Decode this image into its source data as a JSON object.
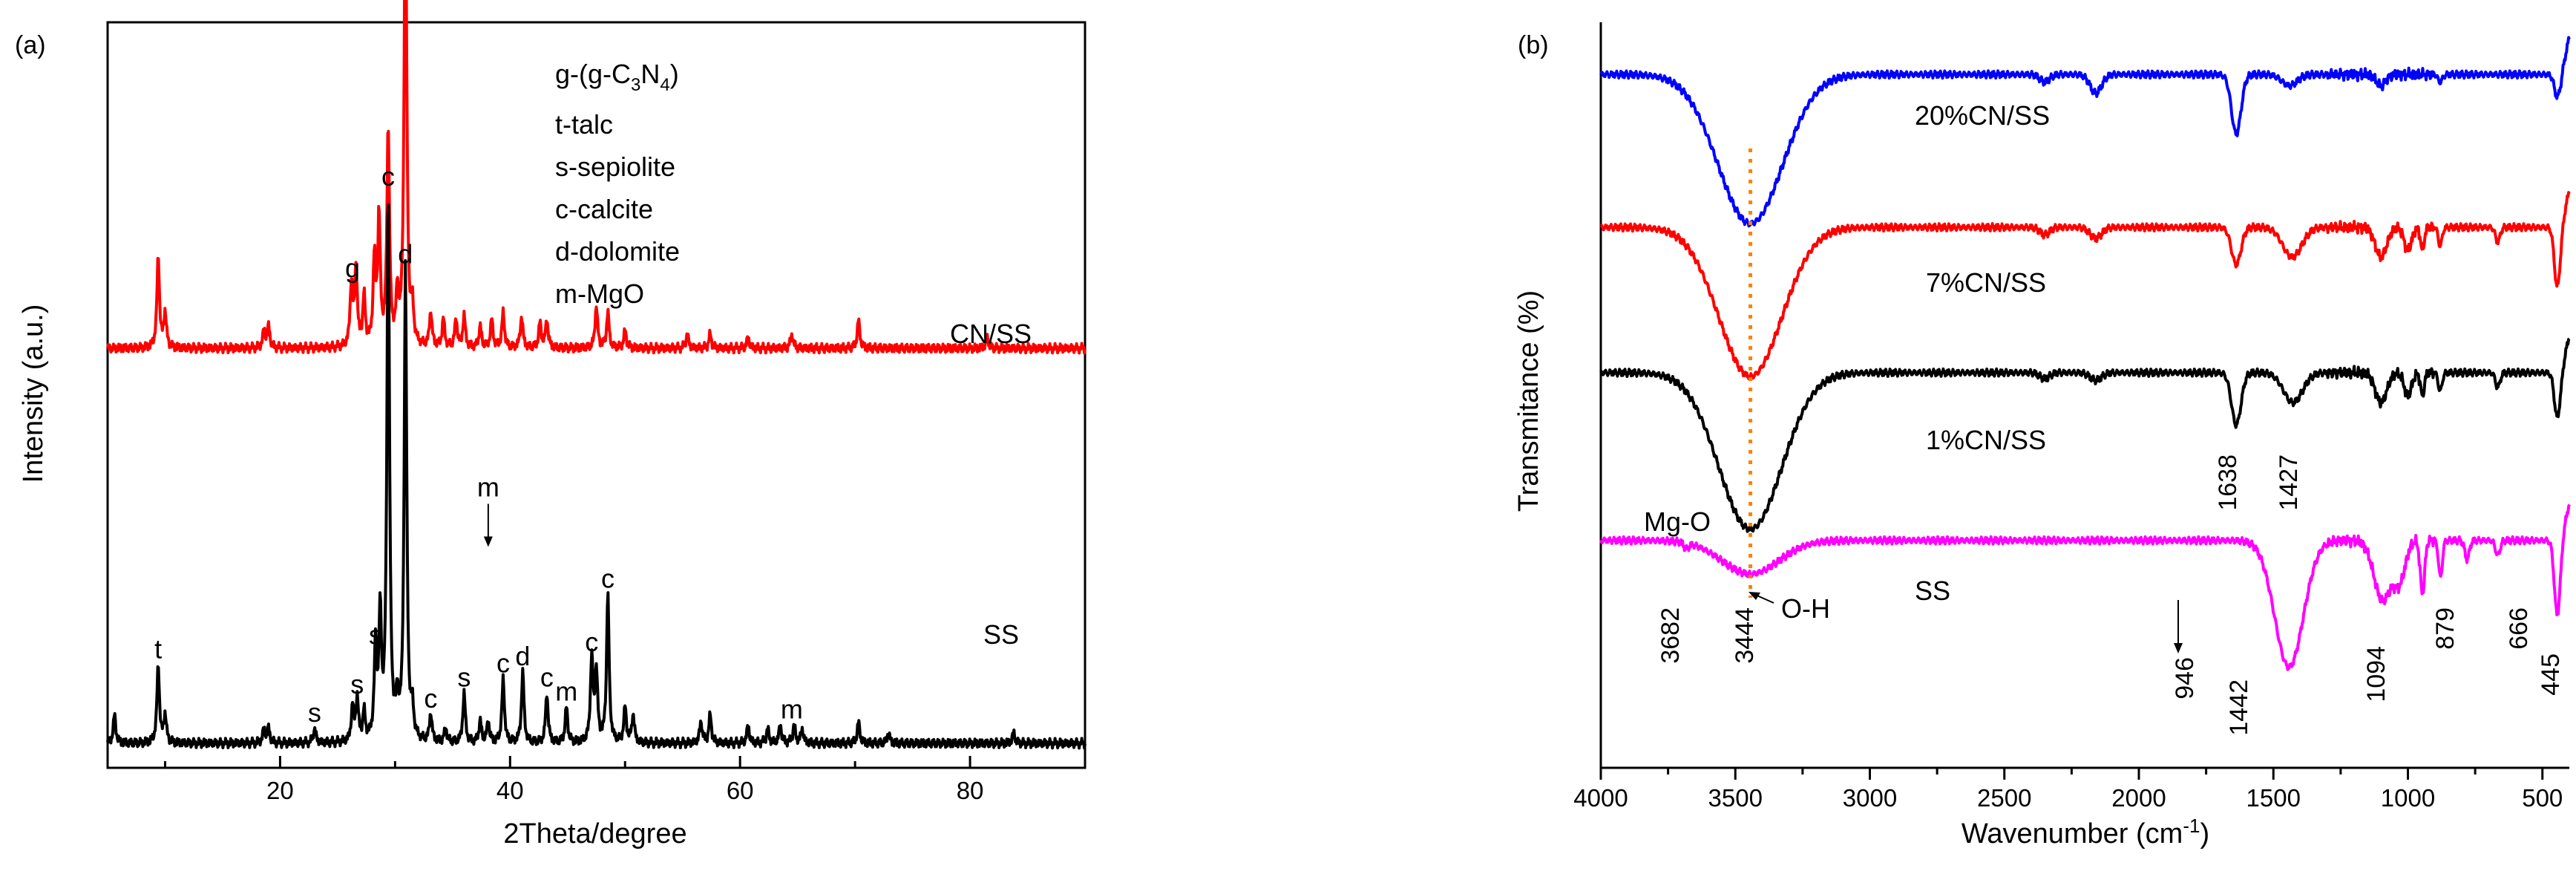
{
  "xrd": {
    "panel_label": "(a)",
    "chart_data": {
      "type": "line",
      "xlabel": "2Theta/degree",
      "ylabel": "Intensity (a.u.)",
      "xlim": [
        5,
        90
      ],
      "xticks": [
        20,
        40,
        60,
        80
      ],
      "series": [
        {
          "name": "CN/SS",
          "color": "#ff0000",
          "baseline": 0.58,
          "peaks": [
            [
              9.4,
              0.13
            ],
            [
              10.0,
              0.05
            ],
            [
              18.6,
              0.025
            ],
            [
              19.0,
              0.03
            ],
            [
              26.2,
              0.09
            ],
            [
              26.6,
              0.11
            ],
            [
              27.3,
              0.07
            ],
            [
              28.2,
              0.12
            ],
            [
              28.6,
              0.18
            ],
            [
              29.4,
              0.31
            ],
            [
              30.2,
              0.07
            ],
            [
              30.9,
              0.69
            ],
            [
              31.5,
              0.05
            ],
            [
              33.1,
              0.05
            ],
            [
              34.2,
              0.04
            ],
            [
              35.3,
              0.04
            ],
            [
              36.0,
              0.045
            ],
            [
              37.4,
              0.03
            ],
            [
              38.4,
              0.04
            ],
            [
              39.4,
              0.05
            ],
            [
              41.0,
              0.045
            ],
            [
              42.6,
              0.035
            ],
            [
              43.2,
              0.04
            ],
            [
              47.5,
              0.06
            ],
            [
              48.5,
              0.05
            ],
            [
              50.0,
              0.025
            ],
            [
              55.4,
              0.02
            ],
            [
              57.4,
              0.02
            ],
            [
              60.7,
              0.015
            ],
            [
              64.5,
              0.02
            ],
            [
              70.3,
              0.04
            ],
            [
              81.5,
              0.015
            ]
          ]
        },
        {
          "name": "SS",
          "color": "#000000",
          "baseline": 0.02,
          "peaks": [
            [
              5.6,
              0.04
            ],
            [
              9.4,
              0.11
            ],
            [
              10.0,
              0.04
            ],
            [
              18.6,
              0.02
            ],
            [
              19.0,
              0.02
            ],
            [
              23.0,
              0.02
            ],
            [
              26.3,
              0.05
            ],
            [
              26.7,
              0.06
            ],
            [
              27.3,
              0.04
            ],
            [
              28.3,
              0.13
            ],
            [
              28.7,
              0.17
            ],
            [
              29.4,
              0.78
            ],
            [
              30.2,
              0.05
            ],
            [
              30.9,
              0.67
            ],
            [
              31.5,
              0.04
            ],
            [
              33.1,
              0.04
            ],
            [
              34.4,
              0.02
            ],
            [
              36.0,
              0.07
            ],
            [
              37.4,
              0.03
            ],
            [
              38.1,
              0.03
            ],
            [
              39.4,
              0.09
            ],
            [
              41.1,
              0.1
            ],
            [
              43.2,
              0.07
            ],
            [
              44.9,
              0.05
            ],
            [
              47.1,
              0.12
            ],
            [
              47.5,
              0.1
            ],
            [
              48.5,
              0.21
            ],
            [
              50.0,
              0.05
            ],
            [
              50.7,
              0.04
            ],
            [
              56.6,
              0.03
            ],
            [
              57.4,
              0.04
            ],
            [
              60.7,
              0.025
            ],
            [
              62.4,
              0.02
            ],
            [
              63.5,
              0.025
            ],
            [
              64.7,
              0.025
            ],
            [
              65.4,
              0.02
            ],
            [
              70.3,
              0.03
            ],
            [
              72.9,
              0.015
            ],
            [
              83.8,
              0.015
            ]
          ]
        }
      ],
      "legend": [
        {
          "prefix": "g-(g-C",
          "sub1": "3",
          "mid": "N",
          "sub2": "4",
          "suffix": ")"
        },
        {
          "text": "t-talc"
        },
        {
          "text": "s-sepiolite"
        },
        {
          "text": "c-calcite"
        },
        {
          "text": "d-dolomite"
        },
        {
          "text": "m-MgO"
        }
      ],
      "annotations": [
        {
          "text": "g",
          "x": 26.3,
          "series": "CN/SS"
        },
        {
          "text": "t",
          "x": 9.4,
          "series": "SS"
        },
        {
          "text": "s",
          "x": 23.0,
          "series": "SS"
        },
        {
          "text": "s",
          "x": 26.7,
          "series": "SS"
        },
        {
          "text": "s",
          "x": 28.3,
          "series": "SS"
        },
        {
          "text": "c",
          "x": 29.4,
          "series": "SS"
        },
        {
          "text": "d",
          "x": 30.9,
          "series": "SS"
        },
        {
          "text": "c",
          "x": 33.1,
          "series": "SS"
        },
        {
          "text": "s",
          "x": 36.0,
          "series": "SS"
        },
        {
          "text": "m",
          "x": 38.1,
          "series": "SS"
        },
        {
          "text": "c",
          "x": 39.4,
          "series": "SS"
        },
        {
          "text": "d",
          "x": 41.1,
          "series": "SS"
        },
        {
          "text": "c",
          "x": 43.2,
          "series": "SS"
        },
        {
          "text": "m",
          "x": 44.9,
          "series": "SS"
        },
        {
          "text": "c",
          "x": 47.1,
          "series": "SS"
        },
        {
          "text": "c",
          "x": 48.5,
          "series": "SS"
        },
        {
          "text": "m",
          "x": 64.5,
          "series": "SS"
        }
      ]
    }
  },
  "ftir": {
    "panel_label": "(b)",
    "chart_data": {
      "type": "line",
      "xlabel_main": "Wavenumber (cm",
      "xlabel_sup": "-1",
      "xlabel_end": ")",
      "ylabel": "Transmitance (%)",
      "xlim": [
        4000,
        400
      ],
      "xticks": [
        4000,
        3500,
        3000,
        2500,
        2000,
        1500,
        1000,
        500
      ],
      "series": [
        {
          "name": "20%CN/SS",
          "color": "#0000ff",
          "baseline": 0.93,
          "bands": [
            [
              3444,
              0.2,
              170
            ],
            [
              2350,
              0.01,
              25
            ],
            [
              2160,
              0.025,
              30
            ],
            [
              1638,
              0.08,
              25
            ],
            [
              1440,
              0.015,
              40
            ],
            [
              1100,
              0.015,
              25
            ],
            [
              880,
              0.01,
              12
            ],
            [
              445,
              0.03,
              15
            ]
          ]
        },
        {
          "name": "7%CN/SS",
          "color": "#ff0000",
          "baseline": 0.725,
          "bands": [
            [
              3444,
              0.2,
              165
            ],
            [
              2350,
              0.01,
              25
            ],
            [
              2160,
              0.015,
              30
            ],
            [
              1638,
              0.05,
              25
            ],
            [
              1430,
              0.04,
              50
            ],
            [
              1100,
              0.04,
              30
            ],
            [
              1000,
              0.03,
              20
            ],
            [
              946,
              0.03,
              10
            ],
            [
              880,
              0.025,
              10
            ],
            [
              666,
              0.02,
              12
            ],
            [
              445,
              0.08,
              15
            ]
          ]
        },
        {
          "name": "1%CN/SS",
          "color": "#000000",
          "baseline": 0.53,
          "bands": [
            [
              3444,
              0.21,
              165
            ],
            [
              2350,
              0.008,
              25
            ],
            [
              2160,
              0.01,
              30
            ],
            [
              1638,
              0.07,
              25
            ],
            [
              1427,
              0.04,
              50
            ],
            [
              1100,
              0.04,
              30
            ],
            [
              1000,
              0.03,
              20
            ],
            [
              946,
              0.03,
              10
            ],
            [
              880,
              0.025,
              10
            ],
            [
              666,
              0.02,
              12
            ],
            [
              445,
              0.06,
              15
            ]
          ]
        },
        {
          "name": "SS",
          "color": "#ff00ff",
          "baseline": 0.305,
          "bands": [
            [
              3682,
              0.008,
              12
            ],
            [
              3444,
              0.045,
              150
            ],
            [
              1442,
              0.17,
              75
            ],
            [
              1094,
              0.08,
              45
            ],
            [
              1030,
              0.05,
              30
            ],
            [
              946,
              0.07,
              12
            ],
            [
              879,
              0.05,
              10
            ],
            [
              780,
              0.025,
              12
            ],
            [
              666,
              0.02,
              12
            ],
            [
              445,
              0.1,
              15
            ]
          ]
        }
      ],
      "peak_labels": [
        "3682",
        "3444",
        "1442",
        "1094",
        "946",
        "879",
        "666",
        "445",
        "1638",
        "1427"
      ],
      "annotations": {
        "mg_o": "Mg-O",
        "o_h": "O-H"
      },
      "guide_line": {
        "x": 3444,
        "color": "#ff8000"
      }
    }
  }
}
